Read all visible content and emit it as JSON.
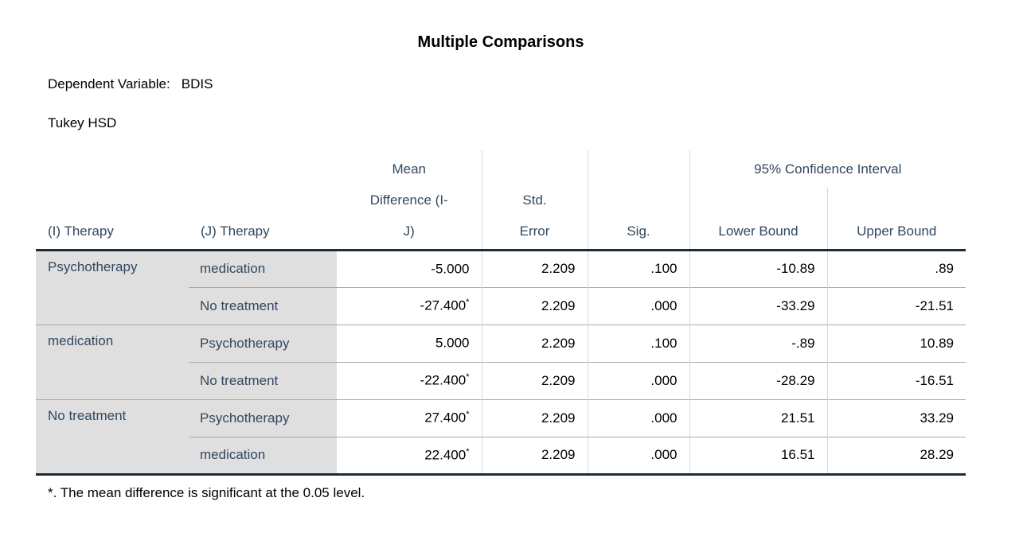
{
  "title": "Multiple Comparisons",
  "meta": {
    "dependent_variable_label": "Dependent Variable:",
    "dependent_variable_value": "BDIS",
    "test_name": "Tukey HSD"
  },
  "table": {
    "header": {
      "i_therapy": "(I) Therapy",
      "j_therapy": "(J) Therapy",
      "mean_difference_lines": [
        "Mean",
        "Difference (I-",
        "J)"
      ],
      "std_error_lines": [
        "Std.",
        "Error"
      ],
      "sig": "Sig.",
      "ci_spanner": "95% Confidence Interval",
      "lower_bound": "Lower Bound",
      "upper_bound": "Upper Bound"
    },
    "rows": [
      {
        "i": "Psychotherapy",
        "j": "medication",
        "mean_diff": "-5.000",
        "star": "",
        "std_error": "2.209",
        "sig": ".100",
        "lower": "-10.89",
        "upper": ".89"
      },
      {
        "j": "No treatment",
        "mean_diff": "-27.400",
        "star": "*",
        "std_error": "2.209",
        "sig": ".000",
        "lower": "-33.29",
        "upper": "-21.51"
      },
      {
        "i": "medication",
        "j": "Psychotherapy",
        "mean_diff": "5.000",
        "star": "",
        "std_error": "2.209",
        "sig": ".100",
        "lower": "-.89",
        "upper": "10.89"
      },
      {
        "j": "No treatment",
        "mean_diff": "-22.400",
        "star": "*",
        "std_error": "2.209",
        "sig": ".000",
        "lower": "-28.29",
        "upper": "-16.51"
      },
      {
        "i": "No treatment",
        "j": "Psychotherapy",
        "mean_diff": "27.400",
        "star": "*",
        "std_error": "2.209",
        "sig": ".000",
        "lower": "21.51",
        "upper": "33.29"
      },
      {
        "j": "medication",
        "mean_diff": "22.400",
        "star": "*",
        "std_error": "2.209",
        "sig": ".000",
        "lower": "16.51",
        "upper": "28.29"
      }
    ],
    "footnote": "*. The mean difference is significant at the 0.05 level."
  },
  "colors": {
    "header_text": "#31485E",
    "label_background": "#DFDFDF",
    "rule_dark": "#1C2B3A",
    "rule_horizontal_light": "#A9A9A9",
    "rule_vertical_light": "#D6D6D6"
  }
}
